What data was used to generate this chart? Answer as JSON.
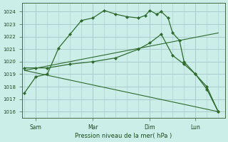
{
  "bg_color": "#cceee8",
  "grid_color": "#aacccc",
  "line_color": "#2d6a2d",
  "marker_color": "#2d6a2d",
  "ylabel_ticks": [
    1016,
    1017,
    1018,
    1019,
    1020,
    1021,
    1022,
    1023,
    1024
  ],
  "ylim": [
    1015.5,
    1024.7
  ],
  "xlabel": "Pression niveau de la mer( hPa )",
  "xtick_labels": [
    "Sam",
    "Mar",
    "Dim",
    "Lun"
  ],
  "xtick_positions": [
    0.5,
    3.0,
    5.5,
    7.5
  ],
  "xlim": [
    -0.1,
    8.8
  ],
  "series": [
    {
      "x": [
        0,
        0.5,
        1.0,
        1.5,
        2.0,
        2.5,
        3.0,
        3.5,
        4.0,
        4.5,
        5.0,
        5.3,
        5.5,
        5.8,
        6.0,
        6.3,
        6.5,
        6.8,
        7.0,
        7.5,
        8.0,
        8.5
      ],
      "y": [
        1017.5,
        1018.8,
        1019.0,
        1021.1,
        1022.2,
        1023.3,
        1023.5,
        1024.1,
        1023.8,
        1023.6,
        1023.5,
        1023.7,
        1024.1,
        1023.8,
        1024.0,
        1023.5,
        1022.3,
        1021.7,
        1020.0,
        1019.0,
        1017.8,
        1016.0
      ],
      "has_markers": true
    },
    {
      "x": [
        0,
        0.5,
        1.0,
        2.0,
        3.0,
        4.0,
        5.0,
        5.5,
        6.0,
        6.5,
        7.0,
        7.5,
        8.0,
        8.5
      ],
      "y": [
        1019.5,
        1019.5,
        1019.5,
        1019.8,
        1020.0,
        1020.3,
        1021.0,
        1021.5,
        1022.2,
        1020.5,
        1019.8,
        1019.0,
        1018.0,
        1016.0
      ],
      "has_markers": true
    },
    {
      "x": [
        0,
        8.5
      ],
      "y": [
        1019.3,
        1016.0
      ],
      "has_markers": false
    },
    {
      "x": [
        0,
        8.5
      ],
      "y": [
        1019.3,
        1022.3
      ],
      "has_markers": false
    }
  ]
}
